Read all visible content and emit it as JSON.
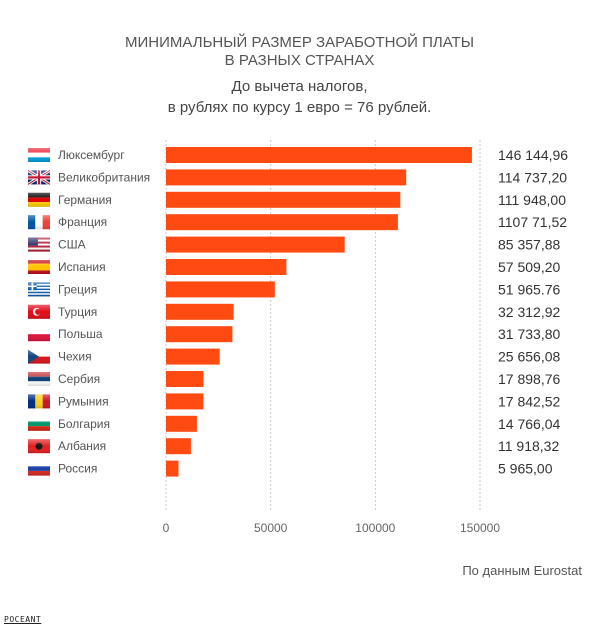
{
  "header": {
    "title_line1": "МИНИМАЛЬНЫЙ РАЗМЕР ЗАРАБОТНОЙ ПЛАТЫ",
    "title_line2": "В РАЗНЫХ СТРАНАХ",
    "subtitle_line1": "До вычета налогов,",
    "subtitle_line2": "в рублях по курсу 1 евро = 76 рублей."
  },
  "footer": {
    "source": "По данным Eurostat",
    "watermark": "POCEANT"
  },
  "colors": {
    "bar": "#ff4a12",
    "grid": "#c8c8c8"
  },
  "chart_data": {
    "type": "bar",
    "orientation": "horizontal",
    "title": "МИНИМАЛЬНЫЙ РАЗМЕР ЗАРАБОТНОЙ ПЛАТЫ В РАЗНЫХ СТРАНАХ",
    "subtitle": "До вычета налогов, в рублях по курсу 1 евро = 76 рублей.",
    "categories": [
      "Люксембург",
      "Великобритания",
      "Германия",
      "Франция",
      "США",
      "Испания",
      "Греция",
      "Турция",
      "Польша",
      "Чехия",
      "Сербия",
      "Румыния",
      "Болгария",
      "Албания",
      "Россия"
    ],
    "values": [
      146144.96,
      114737.2,
      111948.0,
      110771.52,
      85357.88,
      57509.2,
      51965.76,
      32312.92,
      31733.8,
      25656.08,
      17898.76,
      17842.52,
      14766.04,
      11918.32,
      5965.0
    ],
    "value_labels": [
      "146 144,96",
      "114 737,20",
      "111 948,00",
      "1107 71,52",
      "85 357,88",
      "57 509,20",
      "51 965.76",
      "32 312,92",
      "31 733,80",
      "25 656,08",
      "17 898,76",
      "17 842,52",
      "14 766,04",
      "11 918,32",
      "5 965,00"
    ],
    "flags": [
      "flag-luxembourg",
      "flag-uk",
      "flag-germany",
      "flag-france",
      "flag-usa",
      "flag-spain",
      "flag-greece",
      "flag-turkey",
      "flag-poland",
      "flag-czechia",
      "flag-serbia",
      "flag-romania",
      "flag-bulgaria",
      "flag-albania",
      "flag-russia"
    ],
    "xticks": [
      0,
      50000,
      100000,
      150000
    ],
    "xtick_labels": [
      "0",
      "50000",
      "100000",
      "150000"
    ],
    "xlim": [
      0,
      150000
    ],
    "grid": true
  }
}
